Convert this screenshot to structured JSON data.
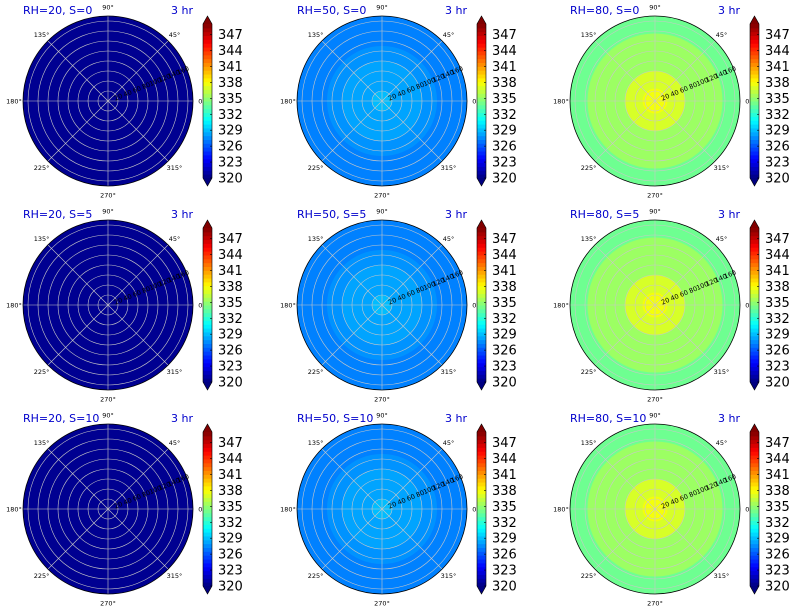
{
  "chart_data": {
    "type": "heatmap",
    "projection": "polar",
    "time_label": "3 hr",
    "angle_labels": [
      "0°",
      "45°",
      "90°",
      "135°",
      "180°",
      "225°",
      "270°",
      "315°"
    ],
    "radial_ticks": [
      20,
      40,
      60,
      80,
      100,
      120,
      140,
      160
    ],
    "radial_tick_labels": [
      "20",
      "40",
      "60",
      "80",
      "100",
      "120",
      "140",
      "160"
    ],
    "rmax": 170,
    "colorbar": {
      "ticks": [
        320,
        323,
        326,
        329,
        332,
        335,
        338,
        341,
        344,
        347
      ],
      "tick_labels": [
        "320",
        "323",
        "326",
        "329",
        "332",
        "335",
        "338",
        "341",
        "344",
        "347"
      ],
      "range": [
        320,
        349
      ],
      "colormap": "jet",
      "extend": "both"
    },
    "panels": [
      {
        "title": "RH=20, S=0",
        "rh": 20,
        "s": 0,
        "levels": [
          {
            "r_outer": 170,
            "value": 320.5
          }
        ]
      },
      {
        "title": "RH=50, S=0",
        "rh": 50,
        "s": 0,
        "levels": [
          {
            "r_outer": 170,
            "value": 327.3
          },
          {
            "r_outer": 110,
            "value": 327.8
          },
          {
            "r_outer": 80,
            "value": 328.3
          },
          {
            "r_outer": 20,
            "value": 329.0
          }
        ]
      },
      {
        "title": "RH=80, S=0",
        "rh": 80,
        "s": 0,
        "levels": [
          {
            "r_outer": 170,
            "value": 334.0
          },
          {
            "r_outer": 135,
            "value": 335.3
          },
          {
            "r_outer": 60,
            "value": 337.0
          },
          {
            "r_outer": 25,
            "value": 337.8
          }
        ]
      },
      {
        "title": "RH=20, S=5",
        "rh": 20,
        "s": 5,
        "levels": [
          {
            "r_outer": 170,
            "value": 320.5
          }
        ]
      },
      {
        "title": "RH=50, S=5",
        "rh": 50,
        "s": 5,
        "levels": [
          {
            "r_outer": 170,
            "value": 327.3
          },
          {
            "r_outer": 110,
            "value": 327.8
          },
          {
            "r_outer": 80,
            "value": 328.3
          },
          {
            "r_outer": 20,
            "value": 329.0
          }
        ]
      },
      {
        "title": "RH=80, S=5",
        "rh": 80,
        "s": 5,
        "levels": [
          {
            "r_outer": 170,
            "value": 334.0
          },
          {
            "r_outer": 135,
            "value": 335.3
          },
          {
            "r_outer": 60,
            "value": 337.0
          },
          {
            "r_outer": 25,
            "value": 337.8
          }
        ]
      },
      {
        "title": "RH=20, S=10",
        "rh": 20,
        "s": 10,
        "levels": [
          {
            "r_outer": 170,
            "value": 320.5
          }
        ]
      },
      {
        "title": "RH=50, S=10",
        "rh": 50,
        "s": 10,
        "levels": [
          {
            "r_outer": 170,
            "value": 327.3
          },
          {
            "r_outer": 110,
            "value": 327.8
          },
          {
            "r_outer": 80,
            "value": 328.3
          },
          {
            "r_outer": 20,
            "value": 329.0
          }
        ]
      },
      {
        "title": "RH=80, S=10",
        "rh": 80,
        "s": 10,
        "levels": [
          {
            "r_outer": 170,
            "value": 334.0
          },
          {
            "r_outer": 135,
            "value": 335.3
          },
          {
            "r_outer": 60,
            "value": 337.0
          },
          {
            "r_outer": 25,
            "value": 337.8
          }
        ]
      }
    ]
  }
}
